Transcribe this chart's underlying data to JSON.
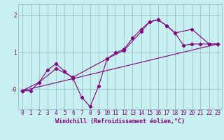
{
  "title": "",
  "xlabel": "Windchill (Refroidissement éolien,°C)",
  "ylabel": "",
  "bg_color": "#c8f0f0",
  "grid_color": "#8ab8c8",
  "line_color": "#800080",
  "xlim": [
    -0.5,
    23.5
  ],
  "ylim": [
    -0.55,
    2.3
  ],
  "yticks": [
    0,
    1,
    2
  ],
  "ytick_labels": [
    "-0",
    "1",
    "2"
  ],
  "xticks": [
    0,
    1,
    2,
    3,
    4,
    5,
    6,
    7,
    8,
    9,
    10,
    11,
    12,
    13,
    14,
    15,
    16,
    17,
    18,
    19,
    20,
    21,
    22,
    23
  ],
  "line1_x": [
    0,
    1,
    2,
    3,
    4,
    5,
    6,
    7,
    8,
    9,
    10,
    11,
    12,
    13,
    14,
    15,
    16,
    17,
    18,
    19,
    20,
    21,
    22,
    23
  ],
  "line1_y": [
    -0.05,
    -0.05,
    0.18,
    0.52,
    0.68,
    0.48,
    0.28,
    -0.22,
    -0.48,
    0.08,
    0.82,
    0.98,
    1.08,
    1.38,
    1.62,
    1.82,
    1.88,
    1.72,
    1.52,
    1.18,
    1.22,
    1.22,
    1.22,
    1.22
  ],
  "line2_x": [
    0,
    2,
    4,
    6,
    10,
    12,
    14,
    15,
    16,
    17,
    18,
    20,
    22,
    23
  ],
  "line2_y": [
    -0.05,
    0.18,
    0.55,
    0.32,
    0.82,
    1.05,
    1.55,
    1.82,
    1.88,
    1.72,
    1.52,
    1.62,
    1.22,
    1.22
  ],
  "line3_x": [
    0,
    23
  ],
  "line3_y": [
    -0.05,
    1.22
  ],
  "marker": "D",
  "marker_size": 2.2,
  "linewidth": 0.8,
  "xlabel_fontsize": 6.0,
  "tick_fontsize": 5.5
}
